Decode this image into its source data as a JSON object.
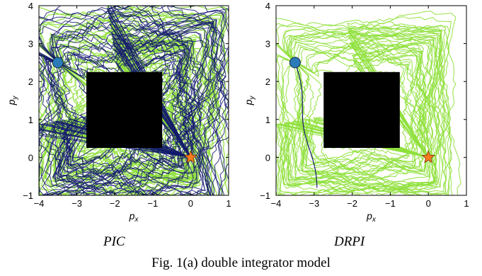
{
  "figure_caption": "Fig. 1(a) double integrator model",
  "chart_data": [
    {
      "type": "line",
      "panel_label": "PIC",
      "xlabel": "p",
      "xlabel_sub": "x",
      "ylabel": "p",
      "ylabel_sub": "y",
      "xlim": [
        -4,
        1
      ],
      "ylim": [
        -1,
        4
      ],
      "xticks": [
        "−4",
        "−3",
        "−2",
        "−1",
        "0",
        "1"
      ],
      "yticks": [
        "−1",
        "0",
        "1",
        "2",
        "3",
        "4"
      ],
      "obstacle": {
        "x": [
          -2.75,
          -0.75
        ],
        "y": [
          0.25,
          2.25
        ],
        "color": "#000000"
      },
      "start": {
        "x": -3.5,
        "y": 2.5,
        "color": "#2b7bb9"
      },
      "goal": {
        "x": 0,
        "y": 0,
        "color": "#f57c20"
      },
      "series": [
        {
          "color": "#8fe03c",
          "count": 50
        },
        {
          "color": "#141a6e",
          "count": 45
        }
      ]
    },
    {
      "type": "line",
      "panel_label": "DRPI",
      "xlabel": "p",
      "xlabel_sub": "x",
      "ylabel": "p",
      "ylabel_sub": "y",
      "xlim": [
        -4,
        1
      ],
      "ylim": [
        -1,
        4
      ],
      "xticks": [
        "−4",
        "−3",
        "−2",
        "−1",
        "0",
        "1"
      ],
      "yticks": [
        "−1",
        "0",
        "1",
        "2",
        "3",
        "4"
      ],
      "obstacle": {
        "x": [
          -2.75,
          -0.75
        ],
        "y": [
          0.25,
          2.25
        ],
        "color": "#000000"
      },
      "start": {
        "x": -3.5,
        "y": 2.5,
        "color": "#2b7bb9"
      },
      "goal": {
        "x": 0,
        "y": 0,
        "color": "#f57c20"
      },
      "series": [
        {
          "color": "#8fe03c",
          "count": 40
        },
        {
          "color": "#141a6e",
          "count": 1
        }
      ]
    }
  ]
}
